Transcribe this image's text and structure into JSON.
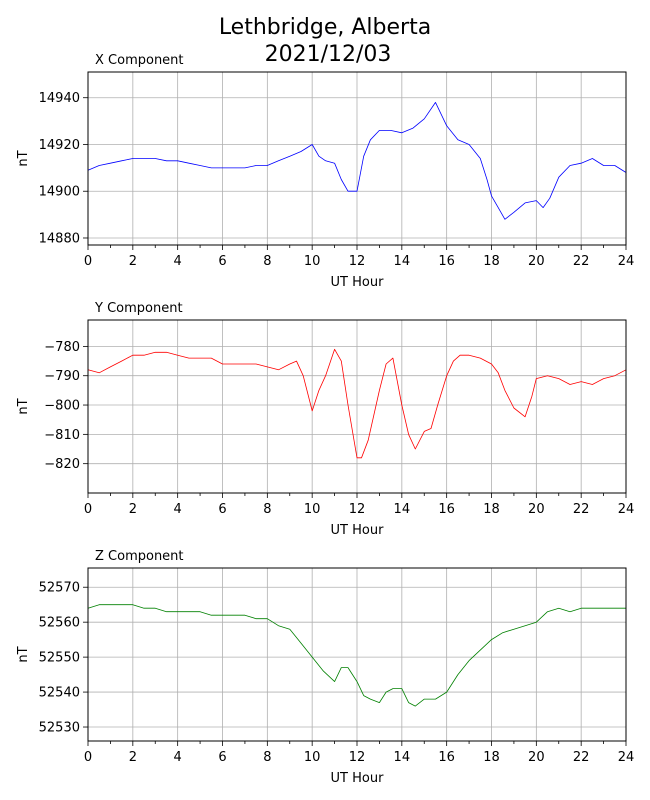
{
  "figure": {
    "title_line1": "Lethbridge, Alberta",
    "title_line2": "2021/12/03"
  },
  "chart_data": [
    {
      "type": "line",
      "title": "X Component",
      "xlabel": "UT Hour",
      "ylabel": "nT",
      "xlim": [
        0,
        24
      ],
      "ylim": [
        14877,
        14951
      ],
      "xticks": [
        0,
        2,
        4,
        6,
        8,
        10,
        12,
        14,
        16,
        18,
        20,
        22,
        24
      ],
      "yticks": [
        14880,
        14900,
        14920,
        14940
      ],
      "grid": true,
      "color": "#0000ff",
      "series": [
        {
          "x": [
            0,
            0.5,
            1,
            1.5,
            2,
            2.5,
            3,
            3.5,
            4,
            4.5,
            5,
            5.5,
            6,
            6.5,
            7,
            7.5,
            8,
            8.5,
            9,
            9.5,
            10,
            10.3,
            10.6,
            11,
            11.3,
            11.6,
            12,
            12.3,
            12.6,
            13,
            13.5,
            14,
            14.5,
            15,
            15.5,
            16,
            16.5,
            17,
            17.5,
            17.8,
            18,
            18.3,
            18.6,
            19,
            19.5,
            20,
            20.3,
            20.6,
            21,
            21.5,
            22,
            22.5,
            23,
            23.5,
            24
          ],
          "y": [
            14909,
            14911,
            14912,
            14913,
            14914,
            14914,
            14914,
            14913,
            14913,
            14912,
            14911,
            14910,
            14910,
            14910,
            14910,
            14911,
            14911,
            14913,
            14915,
            14917,
            14920,
            14915,
            14913,
            14912,
            14905,
            14900,
            14900,
            14915,
            14922,
            14926,
            14926,
            14925,
            14927,
            14931,
            14938,
            14928,
            14922,
            14920,
            14914,
            14905,
            14898,
            14893,
            14888,
            14891,
            14895,
            14896,
            14893,
            14897,
            14906,
            14911,
            14912,
            14914,
            14911,
            14911,
            14908
          ]
        }
      ]
    },
    {
      "type": "line",
      "title": "Y Component",
      "xlabel": "UT Hour",
      "ylabel": "nT",
      "xlim": [
        0,
        24
      ],
      "ylim": [
        -830,
        -771
      ],
      "xticks": [
        0,
        2,
        4,
        6,
        8,
        10,
        12,
        14,
        16,
        18,
        20,
        22,
        24
      ],
      "yticks": [
        -820,
        -810,
        -800,
        -790,
        -780
      ],
      "grid": true,
      "color": "#ff0000",
      "series": [
        {
          "x": [
            0,
            0.5,
            1,
            1.5,
            2,
            2.5,
            3,
            3.5,
            4,
            4.5,
            5,
            5.5,
            6,
            6.5,
            7,
            7.5,
            8,
            8.5,
            9,
            9.3,
            9.6,
            10,
            10.3,
            10.6,
            11,
            11.3,
            11.6,
            12,
            12.2,
            12.5,
            13,
            13.3,
            13.6,
            14,
            14.3,
            14.6,
            15,
            15.3,
            15.6,
            16,
            16.3,
            16.6,
            17,
            17.5,
            18,
            18.3,
            18.6,
            19,
            19.5,
            19.8,
            20,
            20.5,
            21,
            21.5,
            22,
            22.5,
            23,
            23.5,
            24
          ],
          "y": [
            -788,
            -789,
            -787,
            -785,
            -783,
            -783,
            -782,
            -782,
            -783,
            -784,
            -784,
            -784,
            -786,
            -786,
            -786,
            -786,
            -787,
            -788,
            -786,
            -785,
            -790,
            -802,
            -795,
            -790,
            -781,
            -785,
            -800,
            -818,
            -818,
            -812,
            -795,
            -786,
            -784,
            -800,
            -810,
            -815,
            -809,
            -808,
            -800,
            -790,
            -785,
            -783,
            -783,
            -784,
            -786,
            -789,
            -795,
            -801,
            -804,
            -797,
            -791,
            -790,
            -791,
            -793,
            -792,
            -793,
            -791,
            -790,
            -788
          ]
        }
      ]
    },
    {
      "type": "line",
      "title": "Z Component",
      "xlabel": "UT Hour",
      "ylabel": "nT",
      "xlim": [
        0,
        24
      ],
      "ylim": [
        52526,
        52575.5
      ],
      "xticks": [
        0,
        2,
        4,
        6,
        8,
        10,
        12,
        14,
        16,
        18,
        20,
        22,
        24
      ],
      "yticks": [
        52530,
        52540,
        52550,
        52560,
        52570
      ],
      "grid": true,
      "color": "#008000",
      "series": [
        {
          "x": [
            0,
            0.5,
            1,
            1.5,
            2,
            2.5,
            3,
            3.5,
            4,
            4.5,
            5,
            5.5,
            6,
            6.5,
            7,
            7.5,
            8,
            8.5,
            9,
            9.5,
            10,
            10.5,
            11,
            11.3,
            11.6,
            12,
            12.3,
            12.6,
            13,
            13.3,
            13.6,
            14,
            14.3,
            14.6,
            15,
            15.5,
            16,
            16.5,
            17,
            17.5,
            18,
            18.5,
            19,
            19.5,
            20,
            20.5,
            21,
            21.5,
            22,
            22.5,
            23,
            23.5,
            24
          ],
          "y": [
            52564,
            52565,
            52565,
            52565,
            52565,
            52564,
            52564,
            52563,
            52563,
            52563,
            52563,
            52562,
            52562,
            52562,
            52562,
            52561,
            52561,
            52559,
            52558,
            52554,
            52550,
            52546,
            52543,
            52547,
            52547,
            52543,
            52539,
            52538,
            52537,
            52540,
            52541,
            52541,
            52537,
            52536,
            52538,
            52538,
            52540,
            52545,
            52549,
            52552,
            52555,
            52557,
            52558,
            52559,
            52560,
            52563,
            52564,
            52563,
            52564,
            52564,
            52564,
            52564,
            52564
          ]
        }
      ]
    }
  ]
}
